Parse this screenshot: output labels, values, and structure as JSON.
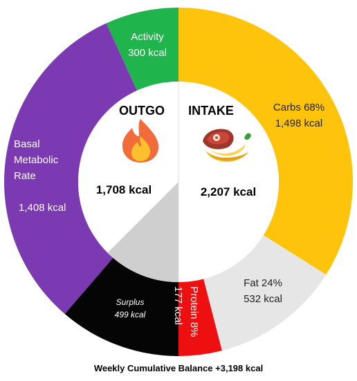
{
  "chart_data": {
    "type": "donut",
    "outgo": {
      "title": "OUTGO",
      "total": "1,708 kcal",
      "segments": [
        {
          "key": "activity",
          "lines": [
            "Activity",
            "300 kcal"
          ],
          "value": 300,
          "color": "#1fb44c"
        },
        {
          "key": "bmr",
          "lines": [
            "Basal",
            "Metabolic",
            "Rate",
            "",
            "1,408 kcal"
          ],
          "value": 1408,
          "color": "#7b3ab2"
        },
        {
          "key": "surplus",
          "lines": [
            "Surplus",
            "499 kcal"
          ],
          "value": 499,
          "color": "#050505"
        }
      ]
    },
    "intake": {
      "title": "INTAKE",
      "total": "2,207 kcal",
      "segments": [
        {
          "key": "carbs",
          "lines": [
            "Carbs 68%",
            "1,498 kcal"
          ],
          "value": 1498,
          "percent": 68,
          "color": "#fec30b"
        },
        {
          "key": "fat",
          "lines": [
            "Fat 24%",
            "532 kcal"
          ],
          "value": 532,
          "percent": 24,
          "color": "#e6e6e6"
        },
        {
          "key": "protein",
          "lines": [
            "Protein 8%",
            "177 kcal"
          ],
          "value": 177,
          "percent": 8,
          "color": "#ee1010"
        }
      ]
    },
    "footer": "Weekly Cumulative Balance +3,198 kcal"
  },
  "icons": {
    "outgo": "flame-icon",
    "intake": "steak-banana-food-icon"
  }
}
